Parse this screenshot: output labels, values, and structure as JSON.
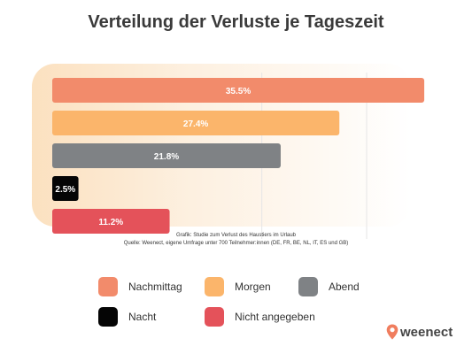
{
  "title": "Verteilung der Verluste je Tageszeit",
  "source": {
    "line1": "Grafik: Studie zum Verlust des Haustiers im Urlaub",
    "line2": "Quelle: Weenect, eigene Umfrage unter 700 Teilnehmer:innen (DE, FR, BE, NL, IT, ES und GB)"
  },
  "chart_data": {
    "type": "bar",
    "orientation": "horizontal",
    "title": "Verteilung der Verluste je Tageszeit",
    "categories": [
      "Nachmittag",
      "Morgen",
      "Abend",
      "Nacht",
      "Nicht angegeben"
    ],
    "values": [
      35.5,
      27.4,
      21.8,
      2.5,
      11.2
    ],
    "data_labels": [
      "35.5%",
      "27.4%",
      "21.8%",
      "2.5%",
      "11.2%"
    ],
    "colors": [
      "#F28B6B",
      "#FBB56B",
      "#7F8285",
      "#050505",
      "#E4525A"
    ],
    "xlim": [
      0,
      36
    ],
    "grid": true,
    "legend_position": "bottom"
  },
  "legend": [
    {
      "label": "Nachmittag",
      "color": "#F28B6B"
    },
    {
      "label": "Morgen",
      "color": "#FBB56B"
    },
    {
      "label": "Abend",
      "color": "#7F8285"
    },
    {
      "label": "Nacht",
      "color": "#050505"
    },
    {
      "label": "Nicht angegeben",
      "color": "#E4525A"
    }
  ],
  "logo": {
    "text": "weenect",
    "color": "#F07D5E"
  }
}
